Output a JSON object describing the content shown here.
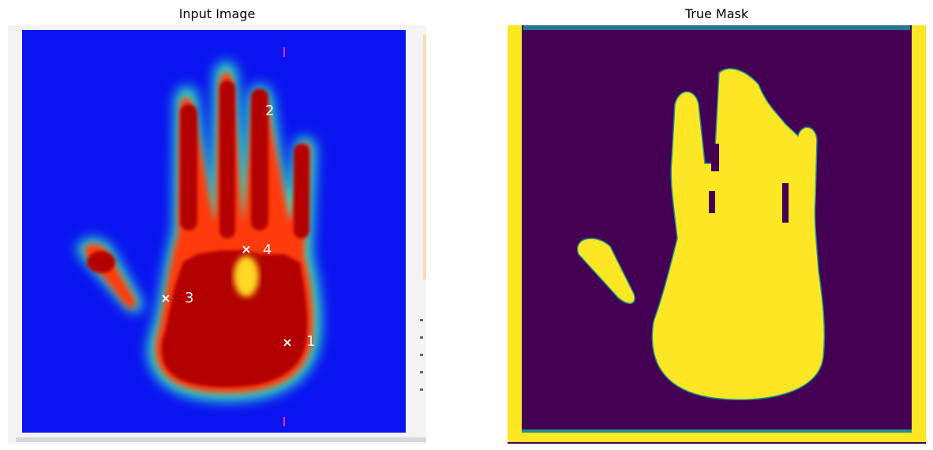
{
  "panels": [
    {
      "title": "Input Image",
      "annotation_labels": [
        "2",
        "4",
        "3",
        "1"
      ],
      "colors": {
        "background": "#0a14f0",
        "hand_core": "#b30000",
        "hand_mid": "#ff3a10",
        "hand_edge": "#34f5d8"
      }
    },
    {
      "title": "True Mask",
      "colors": {
        "background": "#440154",
        "foreground": "#fde725",
        "edge": "#21918c"
      }
    }
  ]
}
